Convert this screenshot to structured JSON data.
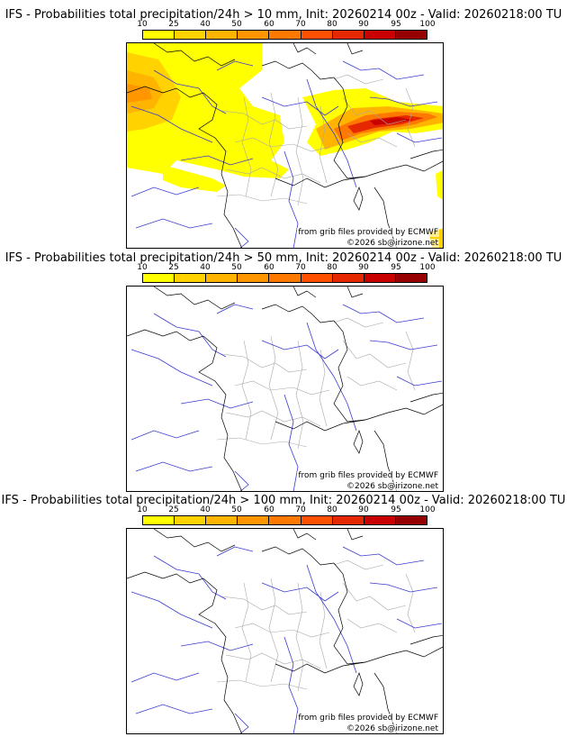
{
  "colorbar": {
    "ticks": [
      "10",
      "25",
      "40",
      "50",
      "60",
      "70",
      "80",
      "90",
      "95",
      "100"
    ],
    "colors": [
      "#ffff00",
      "#ffd200",
      "#ffb400",
      "#ff9600",
      "#ff7800",
      "#ff5000",
      "#e62800",
      "#c80000",
      "#960000",
      "#640000"
    ]
  },
  "source_text": "from grib files provided by ECMWF",
  "copyright_text": "©2026 sb@irizone.net",
  "panels": [
    {
      "title": "IFS - Probabilities total precipitation/24h > 10 mm, Init: 20260214 00z - Valid: 20260218:00 TU",
      "threshold_mm": 10
    },
    {
      "title": "IFS - Probabilities total precipitation/24h > 50 mm, Init: 20260214 00z - Valid: 20260218:00 TU",
      "threshold_mm": 50
    },
    {
      "title": "IFS - Probabilities total precipitation/24h > 100 mm, Init: 20260214 00z - Valid: 20260218:00 TU",
      "threshold_mm": 100
    }
  ]
}
